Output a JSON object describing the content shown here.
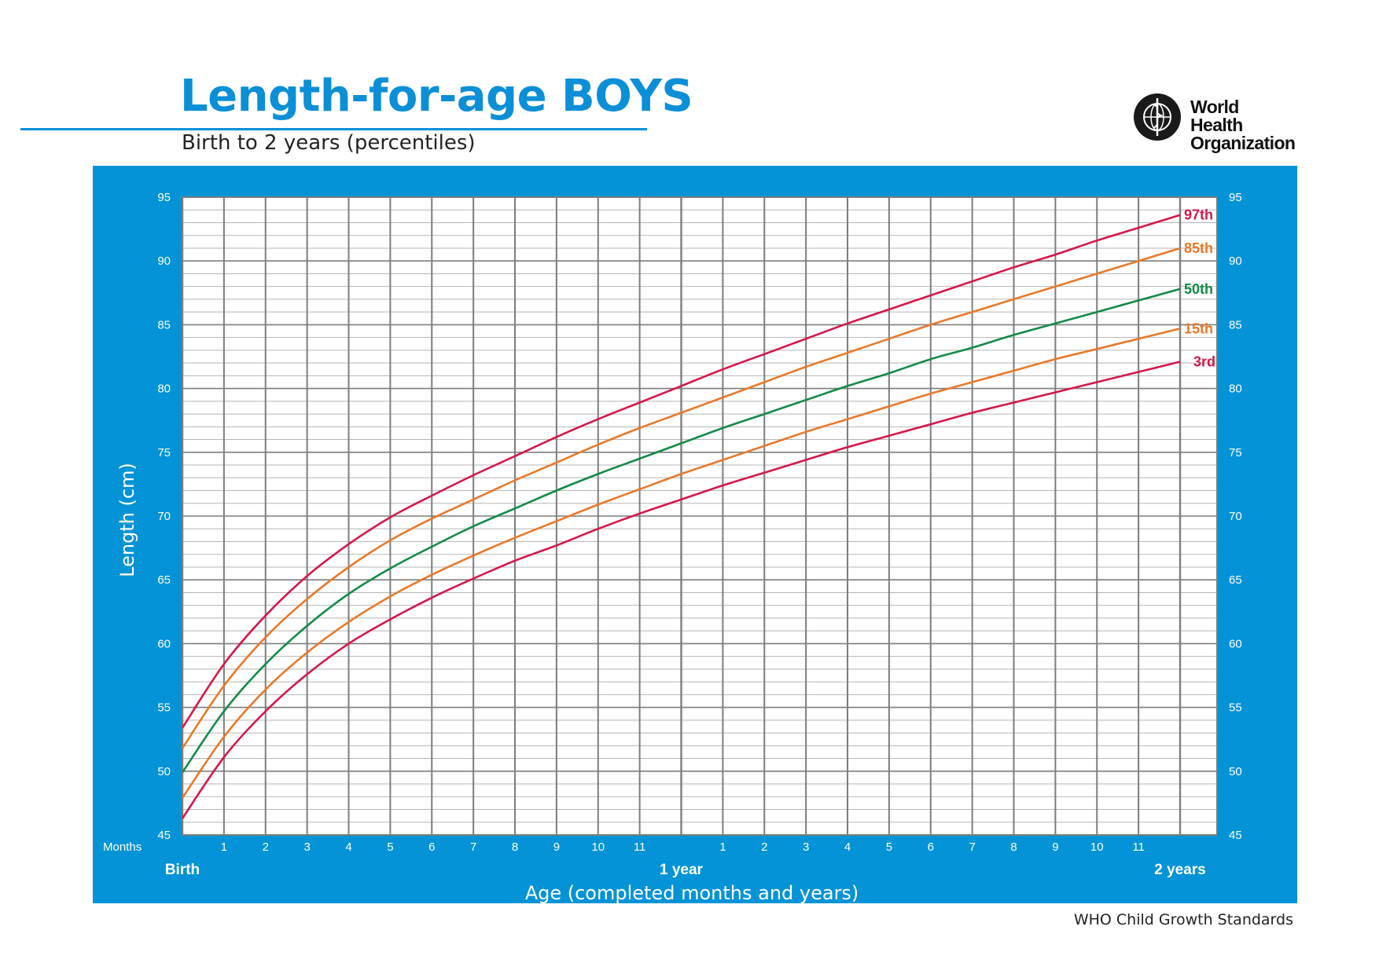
{
  "header": {
    "title": "Length-for-age BOYS",
    "subtitle": "Birth to 2 years (percentiles)"
  },
  "logo": {
    "name_line1": "World Health",
    "name_line2": "Organization",
    "icon": "who-emblem-icon"
  },
  "footer": {
    "text": "WHO Child Growth Standards"
  },
  "colors": {
    "panel": "#0493d6",
    "grid_major": "#7d7d7d",
    "grid_minor": "#b5b5b5",
    "p97": "#d4174a",
    "p85": "#e8792a",
    "p50": "#138a47",
    "p15": "#e8792a",
    "p3": "#d4174a"
  },
  "chart_data": {
    "type": "line",
    "title": "Length-for-age BOYS",
    "subtitle": "Birth to 2 years (percentiles)",
    "xlabel": "Age (completed months and years)",
    "ylabel": "Length (cm)",
    "months_label": "Months",
    "xlim": [
      0,
      24
    ],
    "ylim": [
      45,
      95
    ],
    "yticks": [
      45,
      50,
      55,
      60,
      65,
      70,
      75,
      80,
      85,
      90,
      95
    ],
    "minor_y_step": 1,
    "grid": true,
    "x_tick_labels": [
      "",
      "1",
      "2",
      "3",
      "4",
      "5",
      "6",
      "7",
      "8",
      "9",
      "10",
      "11",
      "",
      "1",
      "2",
      "3",
      "4",
      "5",
      "6",
      "7",
      "8",
      "9",
      "10",
      "11",
      ""
    ],
    "x_major_labels": [
      {
        "month": 0,
        "text": "Birth"
      },
      {
        "month": 12,
        "text": "1 year"
      },
      {
        "month": 24,
        "text": "2 years"
      }
    ],
    "legend_placement": "right end of curves",
    "x": [
      0,
      1,
      2,
      3,
      4,
      5,
      6,
      7,
      8,
      9,
      10,
      11,
      12,
      13,
      14,
      15,
      16,
      17,
      18,
      19,
      20,
      21,
      22,
      23,
      24
    ],
    "series": [
      {
        "name": "97th",
        "color": "#d4174a",
        "values": [
          53.4,
          58.4,
          62.2,
          65.3,
          67.8,
          69.9,
          71.6,
          73.2,
          74.7,
          76.2,
          77.6,
          78.9,
          80.2,
          81.5,
          82.7,
          83.9,
          85.1,
          86.2,
          87.3,
          88.4,
          89.5,
          90.5,
          91.6,
          92.6,
          93.6
        ]
      },
      {
        "name": "85th",
        "color": "#e8792a",
        "values": [
          51.8,
          56.7,
          60.5,
          63.5,
          66.0,
          68.1,
          69.8,
          71.3,
          72.8,
          74.2,
          75.6,
          76.9,
          78.1,
          79.3,
          80.5,
          81.7,
          82.8,
          83.9,
          85.0,
          86.0,
          87.0,
          88.0,
          89.0,
          90.0,
          91.0
        ]
      },
      {
        "name": "50th",
        "color": "#138a47",
        "values": [
          49.9,
          54.7,
          58.4,
          61.4,
          63.9,
          65.9,
          67.6,
          69.2,
          70.6,
          72.0,
          73.3,
          74.5,
          75.7,
          76.9,
          78.0,
          79.1,
          80.2,
          81.2,
          82.3,
          83.2,
          84.2,
          85.1,
          86.0,
          86.9,
          87.8
        ]
      },
      {
        "name": "15th",
        "color": "#e8792a",
        "values": [
          47.9,
          52.7,
          56.4,
          59.3,
          61.7,
          63.7,
          65.4,
          66.9,
          68.3,
          69.6,
          70.9,
          72.1,
          73.3,
          74.4,
          75.5,
          76.6,
          77.6,
          78.6,
          79.6,
          80.5,
          81.4,
          82.3,
          83.1,
          83.9,
          84.7
        ]
      },
      {
        "name": "3rd",
        "color": "#d4174a",
        "values": [
          46.3,
          51.1,
          54.7,
          57.6,
          60.0,
          61.9,
          63.6,
          65.1,
          66.5,
          67.7,
          69.0,
          70.2,
          71.3,
          72.4,
          73.4,
          74.4,
          75.4,
          76.3,
          77.2,
          78.1,
          78.9,
          79.7,
          80.5,
          81.3,
          82.1
        ]
      }
    ]
  }
}
